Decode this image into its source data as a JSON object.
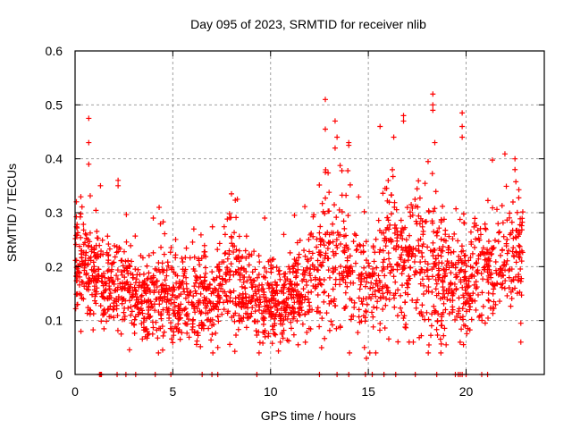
{
  "chart_data": {
    "type": "scatter",
    "title": "Day 095 of 2023, SRMTID for receiver nlib",
    "xlabel": "GPS time / hours",
    "ylabel": "SRMTID / TECUs",
    "xlim": [
      0,
      24
    ],
    "ylim": [
      0,
      0.6
    ],
    "xticks": [
      0,
      5,
      10,
      15,
      20
    ],
    "xtick_labels": [
      "0",
      "5",
      "10",
      "15",
      "20"
    ],
    "yticks": [
      0,
      0.1,
      0.2,
      0.3,
      0.4,
      0.5,
      0.6
    ],
    "ytick_labels": [
      "0",
      "0.1",
      "0.2",
      "0.3",
      "0.4",
      "0.5",
      "0.6"
    ],
    "grid": true,
    "legend": "none",
    "marker": "plus",
    "color": "#ff0000",
    "data_end_hour": 22.9,
    "trend": {
      "description": "approximate median and spread of SRMTID per hour",
      "hours": [
        0,
        1,
        2,
        3,
        4,
        5,
        6,
        7,
        8,
        9,
        10,
        11,
        12,
        13,
        14,
        15,
        16,
        17,
        18,
        19,
        20,
        21,
        22,
        22.9
      ],
      "median": [
        0.21,
        0.19,
        0.17,
        0.15,
        0.14,
        0.14,
        0.15,
        0.13,
        0.19,
        0.14,
        0.13,
        0.14,
        0.17,
        0.22,
        0.2,
        0.16,
        0.22,
        0.21,
        0.2,
        0.17,
        0.17,
        0.19,
        0.21,
        0.23
      ],
      "spread": [
        0.05,
        0.05,
        0.05,
        0.045,
        0.045,
        0.05,
        0.05,
        0.05,
        0.06,
        0.04,
        0.04,
        0.045,
        0.055,
        0.08,
        0.07,
        0.07,
        0.08,
        0.08,
        0.08,
        0.07,
        0.06,
        0.055,
        0.06,
        0.06
      ]
    },
    "notable_points": [
      {
        "x": 0.7,
        "y": 0.475
      },
      {
        "x": 0.7,
        "y": 0.43
      },
      {
        "x": 0.7,
        "y": 0.39
      },
      {
        "x": 1.3,
        "y": 0.35
      },
      {
        "x": 2.2,
        "y": 0.36
      },
      {
        "x": 2.2,
        "y": 0.35
      },
      {
        "x": 4.3,
        "y": 0.31
      },
      {
        "x": 4.0,
        "y": 0.29
      },
      {
        "x": 8.0,
        "y": 0.335
      },
      {
        "x": 8.3,
        "y": 0.325
      },
      {
        "x": 9.7,
        "y": 0.29
      },
      {
        "x": 12.8,
        "y": 0.51
      },
      {
        "x": 12.8,
        "y": 0.455
      },
      {
        "x": 13.3,
        "y": 0.47
      },
      {
        "x": 13.4,
        "y": 0.44
      },
      {
        "x": 14.0,
        "y": 0.43
      },
      {
        "x": 14.0,
        "y": 0.425
      },
      {
        "x": 14.9,
        "y": 0.03
      },
      {
        "x": 14.8,
        "y": 0.05
      },
      {
        "x": 15.6,
        "y": 0.46
      },
      {
        "x": 16.3,
        "y": 0.44
      },
      {
        "x": 16.8,
        "y": 0.48
      },
      {
        "x": 16.8,
        "y": 0.47
      },
      {
        "x": 18.3,
        "y": 0.52
      },
      {
        "x": 18.3,
        "y": 0.5
      },
      {
        "x": 18.3,
        "y": 0.49
      },
      {
        "x": 18.4,
        "y": 0.43
      },
      {
        "x": 19.8,
        "y": 0.485
      },
      {
        "x": 19.8,
        "y": 0.46
      },
      {
        "x": 19.8,
        "y": 0.44
      },
      {
        "x": 22.5,
        "y": 0.4
      },
      {
        "x": 22.5,
        "y": 0.38
      },
      {
        "x": 22.8,
        "y": 0.095
      },
      {
        "x": 22.8,
        "y": 0.06
      },
      {
        "x": 0.3,
        "y": 0.08
      },
      {
        "x": 7.3,
        "y": 0.05
      },
      {
        "x": 10.5,
        "y": 0.06
      },
      {
        "x": 17.3,
        "y": 0.06
      }
    ],
    "zero_points_hours": [
      1.25,
      1.3,
      1.35,
      2.15,
      2.6,
      3.1,
      4.1,
      4.9,
      6.5,
      7.0,
      7.3,
      9.3,
      12.5,
      13.4,
      14.0,
      14.85,
      15.2,
      15.8,
      16.4,
      17.4,
      18.5,
      19.45,
      19.6,
      19.7,
      19.8,
      20.0,
      20.8,
      21.1
    ]
  }
}
